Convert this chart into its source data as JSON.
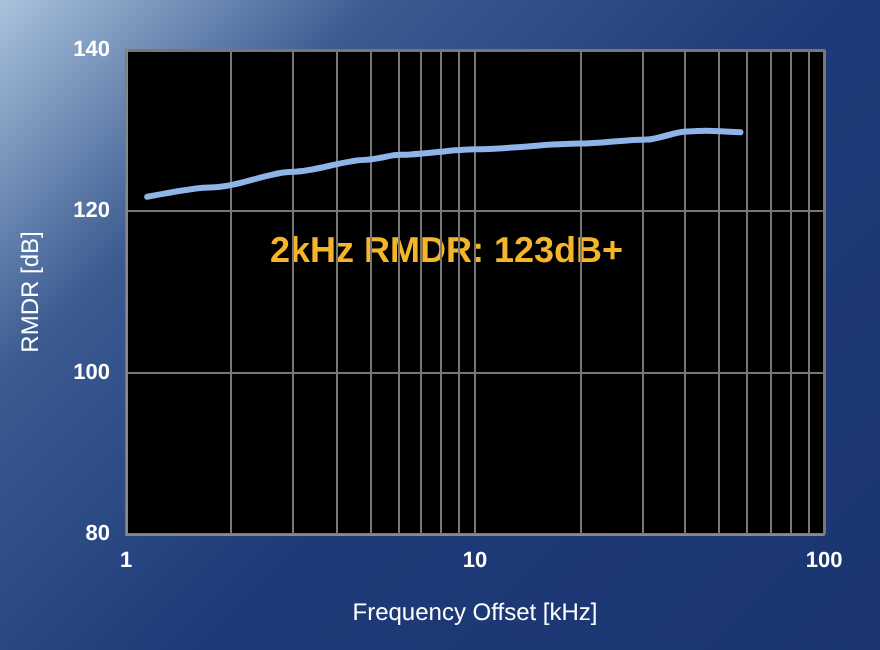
{
  "chart_data": {
    "type": "line",
    "xlabel": "Frequency Offset [kHz]",
    "ylabel": "RMDR [dB]",
    "annotations": [
      "2kHz RMDR: 123dB+"
    ],
    "log": "x",
    "grid": true,
    "marker": "none",
    "line_style": "solid",
    "xlim": [
      1,
      100
    ],
    "xticks": [
      1,
      {
        "value": 2,
        "label": null
      },
      {
        "value": 3,
        "label": null
      },
      {
        "value": 4,
        "label": null
      },
      {
        "value": 5,
        "label": null
      },
      {
        "value": 6,
        "label": null
      },
      {
        "value": 7,
        "label": null
      },
      {
        "value": 8,
        "label": null
      },
      {
        "value": 9,
        "label": null
      },
      10,
      {
        "value": 20,
        "label": null
      },
      {
        "value": 30,
        "label": null
      },
      {
        "value": 40,
        "label": null
      },
      {
        "value": 50,
        "label": null
      },
      {
        "value": 60,
        "label": null
      },
      {
        "value": 70,
        "label": null
      },
      {
        "value": 80,
        "label": null
      },
      {
        "value": 90,
        "label": null
      },
      100
    ],
    "ylim": [
      80,
      140
    ],
    "yticks": [
      80,
      100,
      120,
      140
    ],
    "series": [
      {
        "color": "#8fb4e8",
        "x": [
          1.15,
          1.8,
          3,
          4.9,
          6.1,
          10,
          20,
          31,
          40.5,
          46,
          57.6
        ],
        "values": [
          121.8,
          123,
          124.9,
          126.4,
          127,
          127.7,
          128.4,
          128.9,
          129.9,
          130,
          129.8
        ]
      }
    ]
  }
}
